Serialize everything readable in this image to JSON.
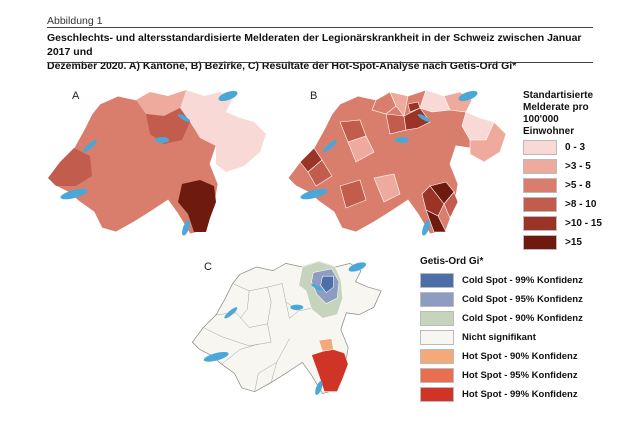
{
  "caption": {
    "label": "Abbildung 1",
    "title_line1": "Geschlechts- und altersstandardisierte Melderaten der Legionärskrankheit in der Schweiz zwischen Januar 2017 und",
    "title_line2": "Dezember 2020. A) Kantone, B) Bezirke, C) Resultate der Hot-Spot-Analyse nach Getis-Ord Gi*"
  },
  "panels": {
    "a": "A",
    "b": "B",
    "c": "C"
  },
  "rate_legend": {
    "title_lines": [
      "Standartisierte",
      "Melderate pro",
      "100'000",
      "Einwohner"
    ],
    "items": [
      {
        "label": "0 - 3",
        "color": "#f8d9d6"
      },
      {
        "label": ">3 - 5",
        "color": "#eeaa9d"
      },
      {
        "label": ">5 - 8",
        "color": "#d97e6c"
      },
      {
        "label": ">8 - 10",
        "color": "#c25d4d"
      },
      {
        "label": ">10 - 15",
        "color": "#9b3426"
      },
      {
        "label": ">15",
        "color": "#6e1a0e"
      }
    ]
  },
  "hotspot_legend": {
    "title": "Getis-Ord Gi*",
    "items": [
      {
        "label": "Cold Spot - 99% Konfidenz",
        "color": "#4c6fa7"
      },
      {
        "label": "Cold Spot - 95% Konfidenz",
        "color": "#8d9cc0"
      },
      {
        "label": "Cold Spot - 90% Konfidenz",
        "color": "#c6d3bd"
      },
      {
        "label": "Nicht signifikant",
        "color": "#f7f6f1"
      },
      {
        "label": "Hot Spot - 90% Konfidenz",
        "color": "#f4a97a"
      },
      {
        "label": "Hot Spot - 95% Konfidenz",
        "color": "#e86f4f"
      },
      {
        "label": "Hot Spot - 99% Konfidenz",
        "color": "#d03427"
      }
    ]
  },
  "colors": {
    "lake": "#4aa8d8",
    "border": "#ffffff",
    "map_a_base": "#d97e6c",
    "map_b_base": "#d97e6c",
    "map_c_base": "#f7f6f1"
  }
}
